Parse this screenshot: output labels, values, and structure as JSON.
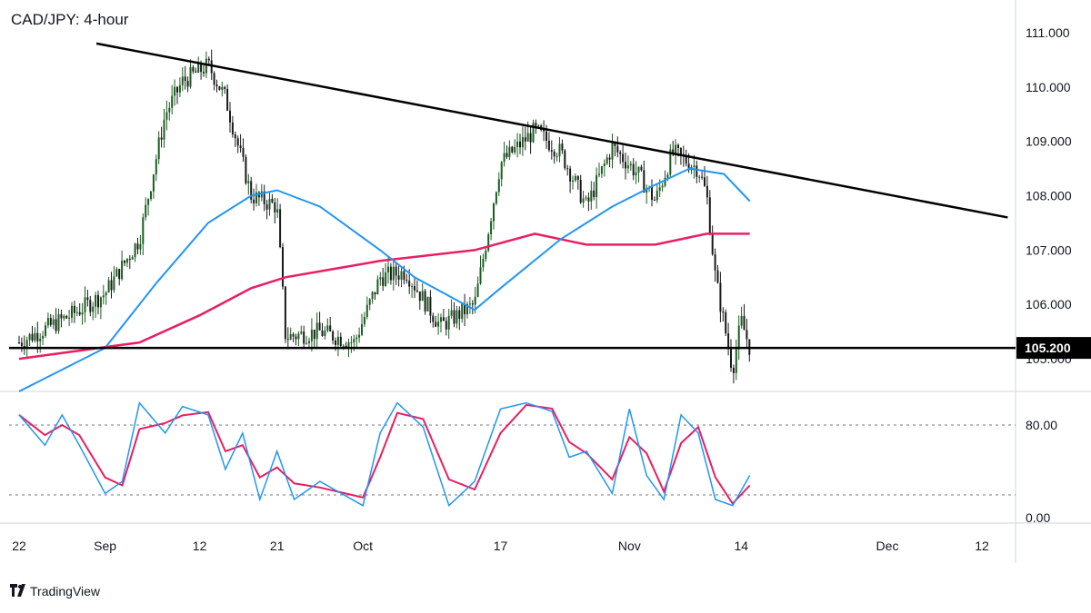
{
  "chart_title": "CAD/JPY: 4-hour",
  "brand": {
    "name": "TradingView",
    "icon": "tradingview-logo-icon"
  },
  "colors": {
    "candle_up": "#1b5e20",
    "candle_down": "#1a1a1a",
    "ma_fast": "#2196f3",
    "ma_slow": "#e91e63",
    "stoch_k": "#2196f3",
    "stoch_d": "#e91e63",
    "trendline": "#000000",
    "grid_border": "#d1d4dc",
    "price_badge": "#000000"
  },
  "chart_data": [
    {
      "type": "candlestick",
      "title": "CAD/JPY: 4-hour",
      "x_tick_labels": [
        "22",
        "Sep",
        "12",
        "21",
        "Oct",
        "17",
        "Nov",
        "14",
        "Dec",
        "12"
      ],
      "y_tick_labels": [
        "111.000",
        "110.000",
        "109.000",
        "108.000",
        "107.000",
        "106.000",
        "105.000"
      ],
      "ylim": [
        104.4,
        111.6
      ],
      "current_price_label": "105.200",
      "key_points": [
        {
          "x": "Aug 22",
          "y": 105.3
        },
        {
          "x": "Aug 28",
          "y": 105.8
        },
        {
          "x": "Sep 1",
          "y": 106.2
        },
        {
          "x": "Sep 5",
          "y": 107.2
        },
        {
          "x": "Sep 8",
          "y": 109.5
        },
        {
          "x": "Sep 10",
          "y": 110.1
        },
        {
          "x": "Sep 13",
          "y": 110.4
        },
        {
          "x": "Sep 15",
          "y": 109.8
        },
        {
          "x": "Sep 18",
          "y": 108.0
        },
        {
          "x": "Sep 21",
          "y": 107.8
        },
        {
          "x": "Sep 22",
          "y": 105.4
        },
        {
          "x": "Sep 26",
          "y": 105.5
        },
        {
          "x": "Sep 30",
          "y": 105.3
        },
        {
          "x": "Oct 3",
          "y": 106.5
        },
        {
          "x": "Oct 6",
          "y": 106.6
        },
        {
          "x": "Oct 10",
          "y": 105.6
        },
        {
          "x": "Oct 14",
          "y": 106.0
        },
        {
          "x": "Oct 17",
          "y": 108.6
        },
        {
          "x": "Oct 21",
          "y": 109.2
        },
        {
          "x": "Oct 24",
          "y": 108.8
        },
        {
          "x": "Oct 27",
          "y": 107.8
        },
        {
          "x": "Oct 30",
          "y": 108.9
        },
        {
          "x": "Nov 2",
          "y": 108.4
        },
        {
          "x": "Nov 4",
          "y": 107.9
        },
        {
          "x": "Nov 6",
          "y": 108.8
        },
        {
          "x": "Nov 9",
          "y": 108.5
        },
        {
          "x": "Nov 10",
          "y": 108.0
        },
        {
          "x": "Nov 11",
          "y": 106.5
        },
        {
          "x": "Nov 13",
          "y": 104.8
        },
        {
          "x": "Nov 14",
          "y": 105.7
        },
        {
          "x": "Nov 15",
          "y": 105.2
        }
      ],
      "ma_fast_points": [
        {
          "x": "Aug 22",
          "y": 104.4
        },
        {
          "x": "Sep 1",
          "y": 105.2
        },
        {
          "x": "Sep 7",
          "y": 106.4
        },
        {
          "x": "Sep 13",
          "y": 107.5
        },
        {
          "x": "Sep 18",
          "y": 108.0
        },
        {
          "x": "Sep 21",
          "y": 108.1
        },
        {
          "x": "Sep 26",
          "y": 107.8
        },
        {
          "x": "Oct 3",
          "y": 107.0
        },
        {
          "x": "Oct 7",
          "y": 106.5
        },
        {
          "x": "Oct 14",
          "y": 105.9
        },
        {
          "x": "Oct 17",
          "y": 106.3
        },
        {
          "x": "Oct 24",
          "y": 107.2
        },
        {
          "x": "Oct 30",
          "y": 107.8
        },
        {
          "x": "Nov 4",
          "y": 108.2
        },
        {
          "x": "Nov 8",
          "y": 108.5
        },
        {
          "x": "Nov 12",
          "y": 108.4
        },
        {
          "x": "Nov 15",
          "y": 107.9
        }
      ],
      "ma_slow_points": [
        {
          "x": "Aug 22",
          "y": 105.0
        },
        {
          "x": "Sep 5",
          "y": 105.3
        },
        {
          "x": "Sep 12",
          "y": 105.8
        },
        {
          "x": "Sep 18",
          "y": 106.3
        },
        {
          "x": "Sep 22",
          "y": 106.5
        },
        {
          "x": "Oct 3",
          "y": 106.8
        },
        {
          "x": "Oct 14",
          "y": 107.0
        },
        {
          "x": "Oct 21",
          "y": 107.3
        },
        {
          "x": "Oct 27",
          "y": 107.1
        },
        {
          "x": "Nov 4",
          "y": 107.1
        },
        {
          "x": "Nov 10",
          "y": 107.3
        },
        {
          "x": "Nov 15",
          "y": 107.3
        }
      ],
      "trendlines": [
        {
          "name": "descending resistance",
          "from": {
            "x": "Aug 31",
            "y": 110.8
          },
          "to": {
            "x": "Dec 15",
            "y": 107.6
          }
        },
        {
          "name": "horizontal support",
          "level": 105.2
        }
      ]
    },
    {
      "type": "line",
      "indicator": "stochastic",
      "y_tick_labels": [
        "80.00",
        "0.00"
      ],
      "ylim": [
        0,
        100
      ],
      "levels": [
        80,
        20
      ],
      "k_points": [
        {
          "x": "Aug 22",
          "y": 85
        },
        {
          "x": "Aug 25",
          "y": 60
        },
        {
          "x": "Aug 27",
          "y": 85
        },
        {
          "x": "Aug 29",
          "y": 60
        },
        {
          "x": "Sep 1",
          "y": 20
        },
        {
          "x": "Sep 3",
          "y": 30
        },
        {
          "x": "Sep 5",
          "y": 95
        },
        {
          "x": "Sep 8",
          "y": 70
        },
        {
          "x": "Sep 10",
          "y": 92
        },
        {
          "x": "Sep 13",
          "y": 85
        },
        {
          "x": "Sep 15",
          "y": 40
        },
        {
          "x": "Sep 17",
          "y": 70
        },
        {
          "x": "Sep 19",
          "y": 15
        },
        {
          "x": "Sep 21",
          "y": 55
        },
        {
          "x": "Sep 23",
          "y": 15
        },
        {
          "x": "Sep 26",
          "y": 30
        },
        {
          "x": "Oct 1",
          "y": 10
        },
        {
          "x": "Oct 3",
          "y": 70
        },
        {
          "x": "Oct 5",
          "y": 95
        },
        {
          "x": "Oct 8",
          "y": 75
        },
        {
          "x": "Oct 11",
          "y": 10
        },
        {
          "x": "Oct 14",
          "y": 30
        },
        {
          "x": "Oct 17",
          "y": 90
        },
        {
          "x": "Oct 20",
          "y": 95
        },
        {
          "x": "Oct 23",
          "y": 88
        },
        {
          "x": "Oct 25",
          "y": 50
        },
        {
          "x": "Oct 27",
          "y": 55
        },
        {
          "x": "Oct 30",
          "y": 20
        },
        {
          "x": "Nov 1",
          "y": 90
        },
        {
          "x": "Nov 3",
          "y": 35
        },
        {
          "x": "Nov 5",
          "y": 15
        },
        {
          "x": "Nov 7",
          "y": 85
        },
        {
          "x": "Nov 9",
          "y": 70
        },
        {
          "x": "Nov 11",
          "y": 15
        },
        {
          "x": "Nov 13",
          "y": 10
        },
        {
          "x": "Nov 15",
          "y": 35
        }
      ]
    }
  ]
}
